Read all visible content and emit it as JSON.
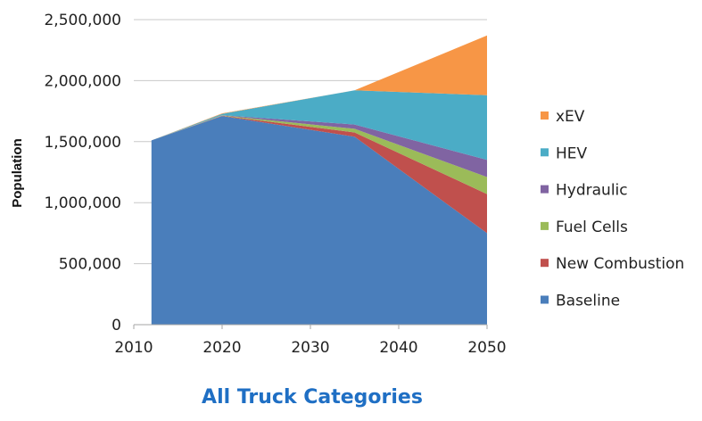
{
  "chart_data": {
    "type": "area",
    "stacked": true,
    "title": "All Truck Categories",
    "xlabel": "",
    "ylabel": "Population",
    "x": [
      2012,
      2020,
      2035,
      2050
    ],
    "xlim": [
      2010,
      2050
    ],
    "ylim": [
      0,
      2500000
    ],
    "xticks": [
      "2010",
      "2020",
      "2030",
      "2040",
      "2050"
    ],
    "yticks": [
      "0",
      "500,000",
      "1,000,000",
      "1,500,000",
      "2,000,000",
      "2,500,000"
    ],
    "grid": "horizontal",
    "legend": "right",
    "series": [
      {
        "name": "Baseline",
        "color": "#4a7ebb",
        "values": [
          1510000,
          1710000,
          1540000,
          750000
        ]
      },
      {
        "name": "New Combustion",
        "color": "#c0504d",
        "values": [
          0,
          3000,
          35000,
          320000
        ]
      },
      {
        "name": "Fuel Cells",
        "color": "#9bbb59",
        "values": [
          0,
          2000,
          30000,
          140000
        ]
      },
      {
        "name": "Hydraulic",
        "color": "#8064a2",
        "values": [
          0,
          2000,
          35000,
          140000
        ]
      },
      {
        "name": "HEV",
        "color": "#4bacc6",
        "values": [
          0,
          10000,
          280000,
          530000
        ]
      },
      {
        "name": "xEV",
        "color": "#f79646",
        "values": [
          0,
          5000,
          0,
          490000
        ]
      }
    ]
  }
}
